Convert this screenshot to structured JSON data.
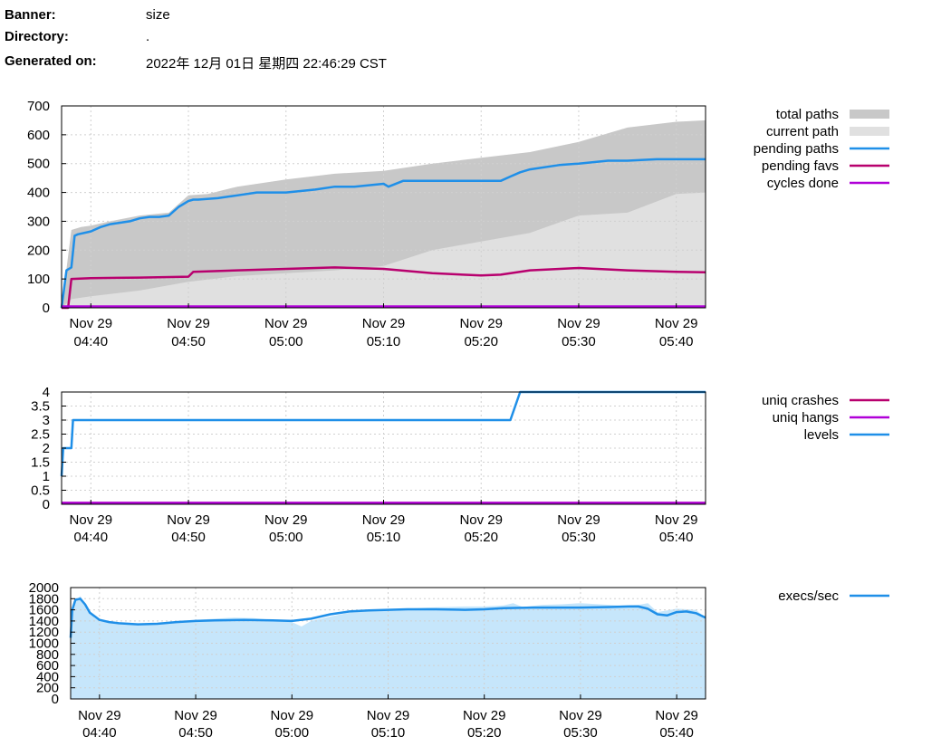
{
  "info": {
    "rows": [
      {
        "label": "Banner:",
        "value": "size"
      },
      {
        "label": "Directory:",
        "value": "."
      },
      {
        "label": "Generated on:",
        "value": "2022年 12月 01日 星期四 22:46:29 CST"
      }
    ]
  },
  "chart_data": [
    {
      "type": "area",
      "xlabel": "",
      "ylabel": "",
      "x_range": [
        "04:37",
        "05:43"
      ],
      "x_ticks": [
        {
          "t": "04:40",
          "line1": "Nov 29",
          "line2": "04:40"
        },
        {
          "t": "04:50",
          "line1": "Nov 29",
          "line2": "04:50"
        },
        {
          "t": "05:00",
          "line1": "Nov 29",
          "line2": "05:00"
        },
        {
          "t": "05:10",
          "line1": "Nov 29",
          "line2": "05:10"
        },
        {
          "t": "05:20",
          "line1": "Nov 29",
          "line2": "05:20"
        },
        {
          "t": "05:30",
          "line1": "Nov 29",
          "line2": "05:30"
        },
        {
          "t": "05:40",
          "line1": "Nov 29",
          "line2": "05:40"
        }
      ],
      "ylim": [
        0,
        700
      ],
      "y_ticks": [
        0,
        100,
        200,
        300,
        400,
        500,
        600,
        700
      ],
      "grid": true,
      "legend_position": "right",
      "series": [
        {
          "name": "total paths",
          "style": "fill",
          "color": "#c8c8c8",
          "x": [
            "04:37",
            "04:38",
            "04:39",
            "04:40",
            "04:42",
            "04:45",
            "04:48",
            "04:50",
            "04:52",
            "04:55",
            "05:00",
            "05:05",
            "05:10",
            "05:15",
            "05:20",
            "05:25",
            "05:30",
            "05:35",
            "05:40",
            "05:43"
          ],
          "y": [
            0,
            270,
            280,
            285,
            300,
            320,
            330,
            390,
            395,
            420,
            445,
            465,
            475,
            500,
            520,
            540,
            575,
            625,
            645,
            650
          ]
        },
        {
          "name": "current path",
          "style": "fill",
          "color": "#e0e0e0",
          "x": [
            "04:37",
            "04:38",
            "04:40",
            "04:45",
            "04:50",
            "04:55",
            "05:00",
            "05:05",
            "05:10",
            "05:15",
            "05:20",
            "05:25",
            "05:30",
            "05:35",
            "05:40",
            "05:43"
          ],
          "y": [
            0,
            30,
            40,
            60,
            90,
            110,
            120,
            130,
            145,
            200,
            230,
            260,
            320,
            330,
            395,
            400
          ]
        },
        {
          "name": "pending paths",
          "style": "line",
          "color": "#1f8fe8",
          "x": [
            "04:37",
            "04:37:30",
            "04:38",
            "04:38:20",
            "04:38:40",
            "04:40",
            "04:41",
            "04:42",
            "04:43",
            "04:44",
            "04:45",
            "04:46",
            "04:47",
            "04:48",
            "04:49",
            "04:50",
            "04:50:30",
            "04:51",
            "04:53",
            "04:55",
            "04:57",
            "05:00",
            "05:03",
            "05:05",
            "05:07",
            "05:10",
            "05:10:30",
            "05:12",
            "05:15",
            "05:18",
            "05:20",
            "05:22",
            "05:23",
            "05:24",
            "05:25",
            "05:28",
            "05:30",
            "05:33",
            "05:35",
            "05:38",
            "05:40",
            "05:43"
          ],
          "y": [
            0,
            130,
            140,
            250,
            255,
            265,
            280,
            290,
            295,
            300,
            310,
            315,
            315,
            320,
            350,
            370,
            375,
            375,
            380,
            390,
            400,
            400,
            410,
            420,
            420,
            430,
            420,
            440,
            440,
            440,
            440,
            440,
            455,
            470,
            480,
            495,
            500,
            510,
            510,
            515,
            515,
            515
          ]
        },
        {
          "name": "pending favs",
          "style": "line",
          "color": "#b8006e",
          "x": [
            "04:37",
            "04:37:40",
            "04:38",
            "04:40",
            "04:45",
            "04:50",
            "04:50:30",
            "04:55",
            "05:00",
            "05:05",
            "05:10",
            "05:15",
            "05:20",
            "05:22",
            "05:25",
            "05:30",
            "05:35",
            "05:40",
            "05:43"
          ],
          "y": [
            0,
            0,
            100,
            103,
            105,
            108,
            125,
            130,
            135,
            140,
            135,
            120,
            112,
            115,
            130,
            138,
            130,
            125,
            123
          ]
        },
        {
          "name": "cycles done",
          "style": "line",
          "color": "#b000d8",
          "x": [
            "04:37",
            "05:43"
          ],
          "y": [
            0,
            0
          ]
        }
      ]
    },
    {
      "type": "line",
      "xlabel": "",
      "ylabel": "",
      "x_range": [
        "04:37",
        "05:43"
      ],
      "x_ticks": [
        {
          "t": "04:40",
          "line1": "Nov 29",
          "line2": "04:40"
        },
        {
          "t": "04:50",
          "line1": "Nov 29",
          "line2": "04:50"
        },
        {
          "t": "05:00",
          "line1": "Nov 29",
          "line2": "05:00"
        },
        {
          "t": "05:10",
          "line1": "Nov 29",
          "line2": "05:10"
        },
        {
          "t": "05:20",
          "line1": "Nov 29",
          "line2": "05:20"
        },
        {
          "t": "05:30",
          "line1": "Nov 29",
          "line2": "05:30"
        },
        {
          "t": "05:40",
          "line1": "Nov 29",
          "line2": "05:40"
        }
      ],
      "ylim": [
        0,
        4
      ],
      "y_ticks": [
        0,
        0.5,
        1,
        1.5,
        2,
        2.5,
        3,
        3.5,
        4
      ],
      "grid": true,
      "legend_position": "right",
      "series": [
        {
          "name": "uniq crashes",
          "style": "line",
          "color": "#b8006e",
          "x": [
            "04:37",
            "05:43"
          ],
          "y": [
            0,
            0
          ]
        },
        {
          "name": "uniq hangs",
          "style": "line",
          "color": "#b000d8",
          "x": [
            "04:37",
            "05:43"
          ],
          "y": [
            0,
            0
          ]
        },
        {
          "name": "levels",
          "style": "line",
          "color": "#1f8fe8",
          "x": [
            "04:37",
            "04:37:10",
            "04:37:20",
            "04:38",
            "04:38:10",
            "05:23",
            "05:23:30",
            "05:24",
            "05:43"
          ],
          "y": [
            1,
            2,
            2,
            2,
            3,
            3,
            3.5,
            4,
            4
          ]
        }
      ]
    },
    {
      "type": "area",
      "xlabel": "",
      "ylabel": "",
      "x_range": [
        "04:37",
        "05:43"
      ],
      "x_ticks": [
        {
          "t": "04:40",
          "line1": "Nov 29",
          "line2": "04:40"
        },
        {
          "t": "04:50",
          "line1": "Nov 29",
          "line2": "04:50"
        },
        {
          "t": "05:00",
          "line1": "Nov 29",
          "line2": "05:00"
        },
        {
          "t": "05:10",
          "line1": "Nov 29",
          "line2": "05:10"
        },
        {
          "t": "05:20",
          "line1": "Nov 29",
          "line2": "05:20"
        },
        {
          "t": "05:30",
          "line1": "Nov 29",
          "line2": "05:30"
        },
        {
          "t": "05:40",
          "line1": "Nov 29",
          "line2": "05:40"
        }
      ],
      "ylim": [
        0,
        2000
      ],
      "y_ticks": [
        0,
        200,
        400,
        600,
        800,
        1000,
        1200,
        1400,
        1600,
        1800,
        2000
      ],
      "grid": true,
      "legend_position": "right",
      "series": [
        {
          "name": "",
          "style": "fill",
          "color": "#c6e6fb",
          "x": [
            "04:37",
            "04:37:10",
            "04:37:30",
            "04:38",
            "04:38:30",
            "04:39",
            "04:39:30",
            "04:40",
            "04:41",
            "04:42",
            "04:44",
            "04:46",
            "04:48",
            "04:50",
            "04:52",
            "04:54",
            "04:56",
            "04:58",
            "05:00",
            "05:01",
            "05:02",
            "05:04",
            "05:06",
            "05:08",
            "05:10",
            "05:12",
            "05:14",
            "05:16",
            "05:18",
            "05:20",
            "05:22",
            "05:23",
            "05:24",
            "05:26",
            "05:28",
            "05:30",
            "05:32",
            "05:34",
            "05:36",
            "05:37",
            "05:38",
            "05:40",
            "05:42",
            "05:43"
          ],
          "y": [
            1100,
            1500,
            1750,
            1850,
            1700,
            1550,
            1450,
            1400,
            1380,
            1350,
            1330,
            1340,
            1380,
            1420,
            1440,
            1460,
            1450,
            1420,
            1380,
            1300,
            1400,
            1480,
            1550,
            1580,
            1600,
            1620,
            1640,
            1650,
            1660,
            1660,
            1680,
            1720,
            1650,
            1690,
            1700,
            1720,
            1700,
            1680,
            1690,
            1720,
            1560,
            1620,
            1600,
            1460
          ]
        },
        {
          "name": "execs/sec",
          "style": "line",
          "color": "#1f8fe8",
          "x": [
            "04:37",
            "04:37:10",
            "04:37:30",
            "04:38",
            "04:38:30",
            "04:39",
            "04:40",
            "04:41",
            "04:42",
            "04:44",
            "04:46",
            "04:48",
            "04:50",
            "04:52",
            "04:55",
            "04:58",
            "05:00",
            "05:02",
            "05:04",
            "05:06",
            "05:08",
            "05:10",
            "05:12",
            "05:15",
            "05:18",
            "05:20",
            "05:22",
            "05:25",
            "05:28",
            "05:30",
            "05:33",
            "05:35",
            "05:36",
            "05:37",
            "05:38",
            "05:39",
            "05:40",
            "05:41",
            "05:42",
            "05:43"
          ],
          "y": [
            1100,
            1600,
            1780,
            1800,
            1700,
            1550,
            1420,
            1380,
            1360,
            1340,
            1350,
            1380,
            1400,
            1410,
            1420,
            1410,
            1400,
            1440,
            1520,
            1570,
            1590,
            1600,
            1610,
            1610,
            1600,
            1610,
            1630,
            1640,
            1640,
            1640,
            1650,
            1660,
            1660,
            1620,
            1520,
            1500,
            1560,
            1570,
            1540,
            1460
          ]
        }
      ]
    }
  ]
}
